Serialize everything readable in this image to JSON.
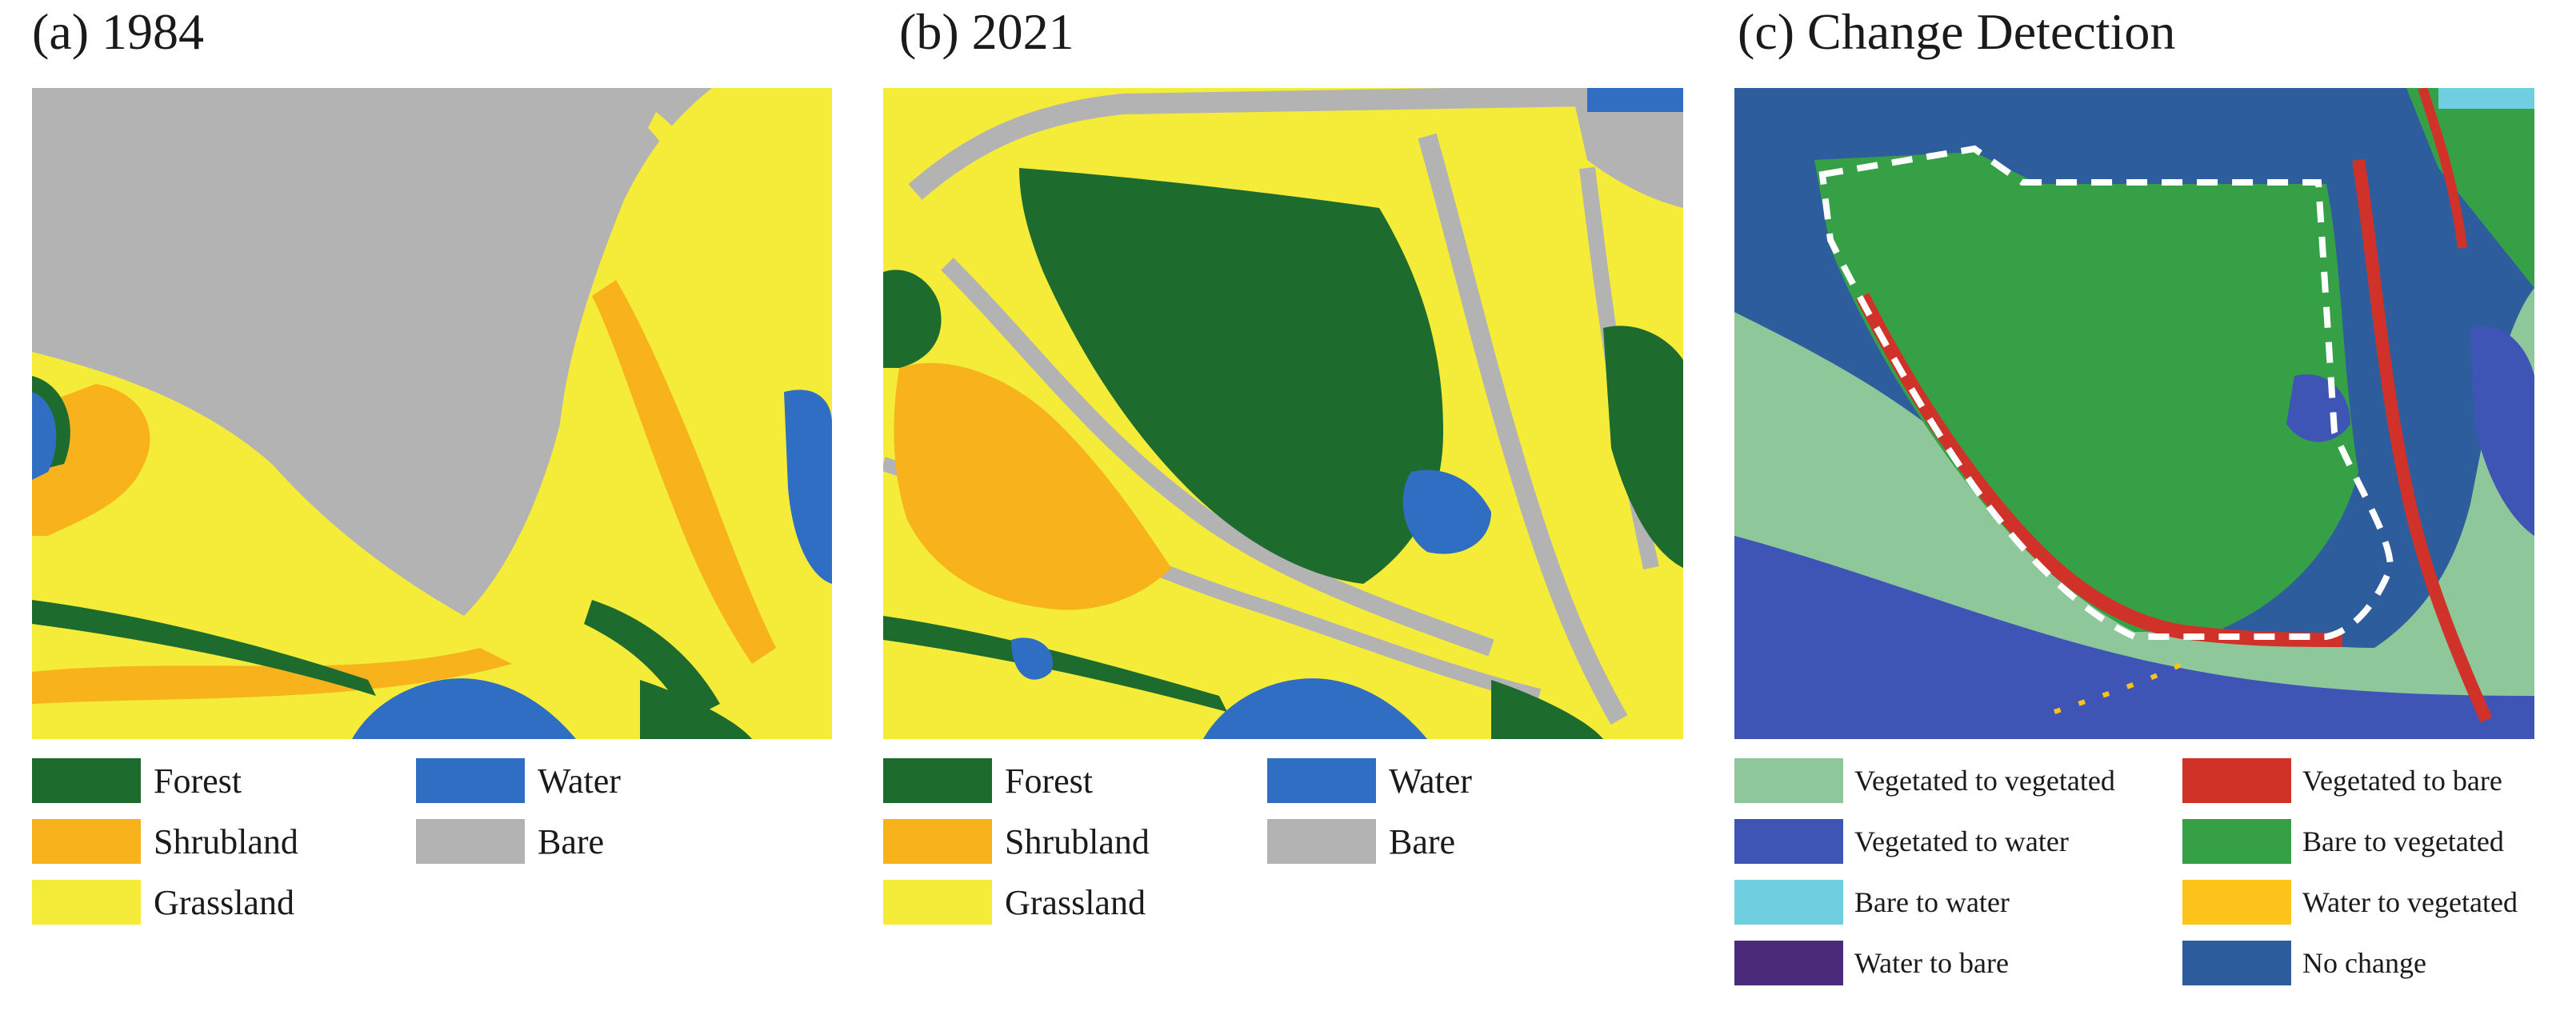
{
  "panels": [
    {
      "title": "(a) 1984",
      "legend": [
        {
          "label": "Forest",
          "color": "#1e6b2e"
        },
        {
          "label": "Water",
          "color": "#2f6ec2"
        },
        {
          "label": "Shrubland",
          "color": "#f7b21c"
        },
        {
          "label": "Bare",
          "color": "#b3b3b3"
        },
        {
          "label": "Grassland",
          "color": "#f5ec3a"
        }
      ]
    },
    {
      "title": "(b) 2021",
      "legend": [
        {
          "label": "Forest",
          "color": "#1e6b2e"
        },
        {
          "label": "Water",
          "color": "#2f6ec2"
        },
        {
          "label": "Shrubland",
          "color": "#f7b21c"
        },
        {
          "label": "Bare",
          "color": "#b3b3b3"
        },
        {
          "label": "Grassland",
          "color": "#f5ec3a"
        }
      ]
    },
    {
      "title": "(c) Change Detection",
      "legend": [
        {
          "label": "Vegetated to vegetated",
          "color": "#8ec79a"
        },
        {
          "label": "Vegetated to bare",
          "color": "#d0322a"
        },
        {
          "label": "Vegetated to water",
          "color": "#3f55b5"
        },
        {
          "label": "Bare to vegetated",
          "color": "#36a046"
        },
        {
          "label": "Bare to water",
          "color": "#6fcfe0"
        },
        {
          "label": "Water to vegetated",
          "color": "#fcc31a"
        },
        {
          "label": "Water to bare",
          "color": "#4a2a7a"
        },
        {
          "label": "No change",
          "color": "#2e5d9e"
        }
      ]
    }
  ]
}
